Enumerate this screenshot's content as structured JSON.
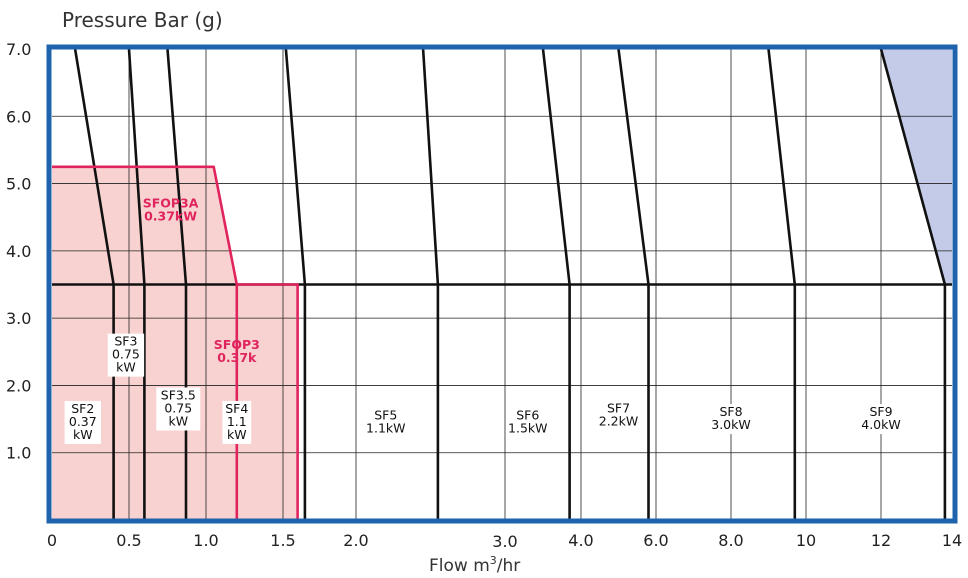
{
  "chart_data": {
    "type": "line",
    "title": "",
    "ylabel": "Pressure Bar (g)",
    "xlabel": "Flow m",
    "xlabel_sup": "3",
    "xlabel_suffix": "/hr",
    "ylim": [
      0,
      7.0
    ],
    "y_ticks": [
      "7.0",
      "6.0",
      "5.0",
      "4.0",
      "3.0",
      "2.0",
      "1.0"
    ],
    "y_tick_values": [
      7,
      6,
      5,
      4,
      3,
      2,
      1
    ],
    "x_ticks": [
      "0",
      "0.5",
      "1.0",
      "1.5",
      "2.0",
      "3.0",
      "4.0",
      "6.0",
      "8.0",
      "10",
      "12",
      "14"
    ],
    "grid": true,
    "colors": {
      "frame": "#1f63ad",
      "grid": "#222222",
      "red": "#e0245e",
      "red_fill": "#f8d2d0",
      "blue_fill": "#c3cbe8"
    },
    "regions": [
      {
        "name": "SFOP3A",
        "color": "red",
        "points": [
          [
            0,
            5.25
          ],
          [
            1.05,
            5.25
          ],
          [
            1.2,
            3.5
          ],
          [
            1.2,
            0
          ],
          [
            0,
            0
          ]
        ]
      },
      {
        "name": "SFOP3",
        "color": "red",
        "points": [
          [
            1.2,
            3.5
          ],
          [
            1.6,
            3.5
          ],
          [
            1.6,
            0
          ],
          [
            1.2,
            0
          ]
        ]
      },
      {
        "name": "",
        "color": "blue",
        "points": [
          [
            12,
            7.0
          ],
          [
            14,
            7.0
          ],
          [
            14,
            3.5
          ],
          [
            13.8,
            3.5
          ]
        ]
      }
    ],
    "series": [
      {
        "name": "SF2 0.37 kW",
        "points": [
          [
            0.15,
            7.0
          ],
          [
            0.4,
            3.5
          ],
          [
            0.4,
            0
          ]
        ]
      },
      {
        "name": "SF3 0.75 kW",
        "points": [
          [
            0.5,
            7.0
          ],
          [
            0.6,
            3.5
          ],
          [
            0.6,
            0
          ]
        ]
      },
      {
        "name": "SF3.5 0.75 kW",
        "points": [
          [
            0.75,
            7.0
          ],
          [
            0.87,
            3.5
          ],
          [
            0.87,
            0
          ]
        ]
      },
      {
        "name": "SF4 1.1 kW",
        "points": [
          [
            1.52,
            7.0
          ],
          [
            1.65,
            3.5
          ],
          [
            1.65,
            0
          ]
        ]
      },
      {
        "name": "SF5 1.1kW",
        "points": [
          [
            2.45,
            7.0
          ],
          [
            2.55,
            3.5
          ],
          [
            2.55,
            0
          ]
        ]
      },
      {
        "name": "SF6 1.5kW",
        "points": [
          [
            3.5,
            7.0
          ],
          [
            3.85,
            3.5
          ],
          [
            3.85,
            0
          ]
        ]
      },
      {
        "name": "SF7 2.2kW",
        "points": [
          [
            5.0,
            7.0
          ],
          [
            5.8,
            3.5
          ],
          [
            5.8,
            0
          ]
        ]
      },
      {
        "name": "SF8 3.0kW",
        "points": [
          [
            9.0,
            7.0
          ],
          [
            9.7,
            3.5
          ],
          [
            9.7,
            0
          ]
        ]
      },
      {
        "name": "SF9 4.0kW",
        "points": [
          [
            12.0,
            7.0
          ],
          [
            13.8,
            3.5
          ],
          [
            13.8,
            0
          ]
        ]
      },
      {
        "name": "SFOP3A 0.37kW",
        "color": "red",
        "points": [
          [
            0,
            5.25
          ],
          [
            1.05,
            5.25
          ],
          [
            1.2,
            3.5
          ],
          [
            1.2,
            0
          ]
        ]
      },
      {
        "name": "SFOP3 0.37k",
        "color": "red",
        "points": [
          [
            1.2,
            3.5
          ],
          [
            1.6,
            3.5
          ],
          [
            1.6,
            0
          ]
        ]
      }
    ],
    "labels": [
      {
        "lines": [
          "SF2",
          "0.37",
          "kW"
        ],
        "x": 0.2,
        "y": 1.45
      },
      {
        "lines": [
          "SF3",
          "0.75",
          "kW"
        ],
        "x": 0.48,
        "y": 2.45
      },
      {
        "lines": [
          "SF3.5",
          "0.75",
          "kW"
        ],
        "x": 0.82,
        "y": 1.65
      },
      {
        "lines": [
          "SF4",
          "1.1",
          "kW"
        ],
        "x": 1.2,
        "y": 1.45
      },
      {
        "lines": [
          "SF5",
          "1.1kW"
        ],
        "x": 2.2,
        "y": 1.45
      },
      {
        "lines": [
          "SF6",
          "1.5kW"
        ],
        "x": 3.3,
        "y": 1.45
      },
      {
        "lines": [
          "SF7",
          "2.2kW"
        ],
        "x": 5.0,
        "y": 1.55
      },
      {
        "lines": [
          "SF8",
          "3.0kW"
        ],
        "x": 8.0,
        "y": 1.5
      },
      {
        "lines": [
          "SF9",
          "4.0kW"
        ],
        "x": 12.0,
        "y": 1.5
      },
      {
        "lines": [
          "SFOP3A",
          "0.37kW"
        ],
        "x": 0.77,
        "y": 4.6,
        "color": "red"
      },
      {
        "lines": [
          "SFOP3",
          "0.37k"
        ],
        "x": 1.2,
        "y": 2.5,
        "color": "red"
      }
    ]
  }
}
